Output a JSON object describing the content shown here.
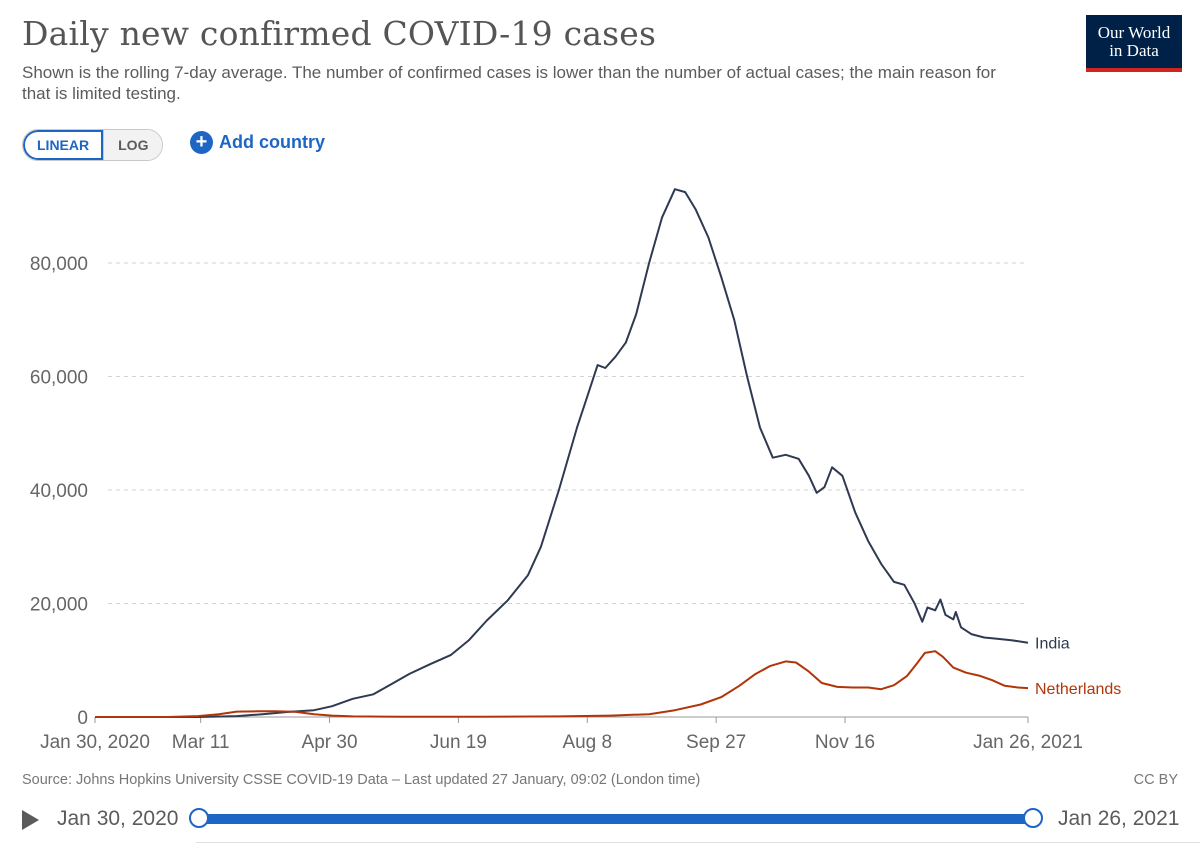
{
  "header": {
    "title": "Daily new confirmed COVID-19 cases",
    "subtitle": "Shown is the rolling 7-day average. The number of confirmed cases is lower than the number of actual cases; the main reason for that is limited testing."
  },
  "logo": {
    "line1": "Our World",
    "line2": "in Data",
    "bg_color": "#002147",
    "accent_color": "#ce261e"
  },
  "controls": {
    "linear_label": "LINEAR",
    "log_label": "LOG",
    "add_country_label": "Add country",
    "active_scale": "LINEAR"
  },
  "footer": {
    "source": "Source: Johns Hopkins University CSSE COVID-19 Data – Last updated 27 January, 09:02 (London time)",
    "license": "CC BY"
  },
  "timeline": {
    "start_label": "Jan 30, 2020",
    "end_label": "Jan 26, 2021"
  },
  "chart_data": {
    "type": "line",
    "title": "Daily new confirmed COVID-19 cases",
    "x_tick_labels": [
      "Jan 30, 2020",
      "Mar 11",
      "Apr 30",
      "Jun 19",
      "Aug 8",
      "Sep 27",
      "Nov 16",
      "Jan 26, 2021"
    ],
    "x_tick_days": [
      0,
      41,
      91,
      141,
      191,
      241,
      291,
      362
    ],
    "x_range_days": [
      0,
      362
    ],
    "y_tick_labels": [
      "0",
      "20,000",
      "40,000",
      "60,000",
      "80,000"
    ],
    "y_ticks": [
      0,
      20000,
      40000,
      60000,
      80000
    ],
    "ylim": [
      0,
      96000
    ],
    "grid": true,
    "legend": "inline labels at line ends (right)",
    "series": [
      {
        "name": "India",
        "color": "#2f3a52",
        "points": [
          [
            0,
            0
          ],
          [
            20,
            0
          ],
          [
            40,
            5
          ],
          [
            55,
            150
          ],
          [
            65,
            500
          ],
          [
            75,
            900
          ],
          [
            85,
            1200
          ],
          [
            92,
            1900
          ],
          [
            100,
            3200
          ],
          [
            108,
            4000
          ],
          [
            115,
            5800
          ],
          [
            122,
            7600
          ],
          [
            130,
            9300
          ],
          [
            138,
            10900
          ],
          [
            145,
            13500
          ],
          [
            152,
            17000
          ],
          [
            160,
            20500
          ],
          [
            168,
            25000
          ],
          [
            173,
            30000
          ],
          [
            180,
            40000
          ],
          [
            187,
            51000
          ],
          [
            191,
            56500
          ],
          [
            195,
            62000
          ],
          [
            198,
            61500
          ],
          [
            202,
            63500
          ],
          [
            206,
            66000
          ],
          [
            210,
            71000
          ],
          [
            215,
            80000
          ],
          [
            220,
            88000
          ],
          [
            225,
            93000
          ],
          [
            229,
            92500
          ],
          [
            233,
            89500
          ],
          [
            238,
            84500
          ],
          [
            243,
            77500
          ],
          [
            248,
            70000
          ],
          [
            253,
            60000
          ],
          [
            258,
            51000
          ],
          [
            263,
            45700
          ],
          [
            268,
            46200
          ],
          [
            273,
            45500
          ],
          [
            277,
            42500
          ],
          [
            280,
            39500
          ],
          [
            283,
            40500
          ],
          [
            286,
            44000
          ],
          [
            290,
            42500
          ],
          [
            295,
            36000
          ],
          [
            300,
            31000
          ],
          [
            305,
            27000
          ],
          [
            310,
            23800
          ],
          [
            314,
            23300
          ],
          [
            318,
            20000
          ],
          [
            321,
            16800
          ],
          [
            323,
            19300
          ],
          [
            326,
            18800
          ],
          [
            328,
            20700
          ],
          [
            330,
            18000
          ],
          [
            333,
            17200
          ],
          [
            334,
            18500
          ],
          [
            336,
            15800
          ],
          [
            340,
            14600
          ],
          [
            345,
            14000
          ],
          [
            350,
            13800
          ],
          [
            356,
            13500
          ],
          [
            362,
            13100
          ]
        ]
      },
      {
        "name": "Netherlands",
        "color": "#b13507",
        "points": [
          [
            0,
            0
          ],
          [
            28,
            0
          ],
          [
            40,
            150
          ],
          [
            48,
            500
          ],
          [
            55,
            950
          ],
          [
            63,
            1000
          ],
          [
            70,
            1000
          ],
          [
            78,
            900
          ],
          [
            85,
            500
          ],
          [
            92,
            250
          ],
          [
            100,
            100
          ],
          [
            120,
            50
          ],
          [
            150,
            50
          ],
          [
            180,
            100
          ],
          [
            200,
            250
          ],
          [
            215,
            500
          ],
          [
            225,
            1200
          ],
          [
            235,
            2200
          ],
          [
            243,
            3500
          ],
          [
            250,
            5500
          ],
          [
            256,
            7500
          ],
          [
            262,
            9000
          ],
          [
            268,
            9800
          ],
          [
            272,
            9600
          ],
          [
            277,
            8000
          ],
          [
            282,
            6000
          ],
          [
            288,
            5300
          ],
          [
            294,
            5200
          ],
          [
            300,
            5200
          ],
          [
            305,
            4900
          ],
          [
            310,
            5600
          ],
          [
            315,
            7200
          ],
          [
            319,
            9500
          ],
          [
            322,
            11300
          ],
          [
            326,
            11600
          ],
          [
            329,
            10600
          ],
          [
            333,
            8700
          ],
          [
            338,
            7800
          ],
          [
            343,
            7300
          ],
          [
            348,
            6500
          ],
          [
            353,
            5500
          ],
          [
            358,
            5200
          ],
          [
            362,
            5100
          ]
        ]
      }
    ]
  }
}
